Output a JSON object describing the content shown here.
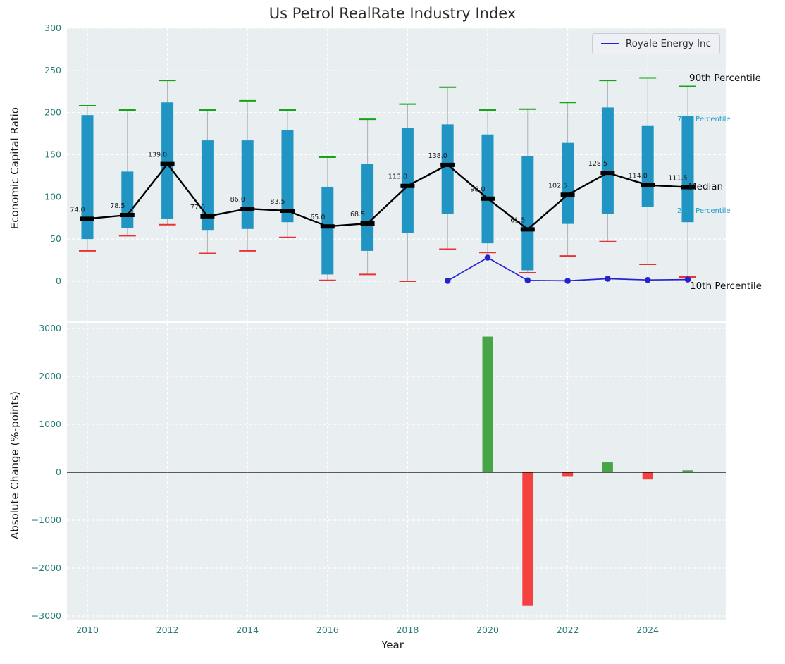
{
  "colors": {
    "figure_bg": "#ffffff",
    "panel_bg": "#e9eef1",
    "grid": "#ffffff",
    "box_fill": "#2095c3",
    "p90_cap": "#17a317",
    "p10_cap": "#e63434",
    "median": "#000000",
    "royale_line": "#2424cf",
    "bar_positive": "#46a546",
    "bar_negative": "#f54040",
    "tick_label": "#2b7d7a",
    "annotation_teal": "#1c9bc9"
  },
  "chart_data": [
    {
      "type": "boxplot",
      "title": "Us Petrol RealRate Industry Index",
      "ylabel": "Economic Capital Ratio",
      "ylim": [
        -47,
        300
      ],
      "yticks": [
        0,
        50,
        100,
        150,
        200,
        250,
        300
      ],
      "grid": true,
      "legend_position": "upper right",
      "right_labels": {
        "p90": "90th Percentile",
        "p75": "75th Percentile",
        "median": "Median",
        "p25": "25th Percentile",
        "p10": "10th Percentile"
      },
      "years": [
        2010,
        2011,
        2012,
        2013,
        2014,
        2015,
        2016,
        2017,
        2018,
        2019,
        2020,
        2021,
        2022,
        2023,
        2024,
        2025
      ],
      "p90": [
        208,
        203,
        238,
        203,
        214,
        203,
        147,
        192,
        210,
        230,
        203,
        204,
        212,
        238,
        241,
        231
      ],
      "p75": [
        197,
        130,
        212,
        167,
        167,
        179,
        112,
        139,
        182,
        186,
        174,
        148,
        164,
        206,
        184,
        196
      ],
      "median": [
        74.0,
        78.5,
        139.0,
        77.0,
        86.0,
        83.5,
        65.0,
        68.5,
        113.0,
        138.0,
        98.0,
        61.5,
        102.5,
        128.5,
        114.0,
        111.5
      ],
      "p25": [
        50,
        63,
        74,
        60,
        62,
        70,
        8,
        36,
        57,
        80,
        45,
        13,
        68,
        80,
        88,
        70
      ],
      "p10": [
        36,
        54,
        67,
        33,
        36,
        52,
        1,
        8,
        0,
        38,
        34,
        10,
        30,
        47,
        20,
        5
      ],
      "series": [
        {
          "name": "Royale Energy Inc",
          "x": [
            2019,
            2020,
            2021,
            2022,
            2023,
            2024,
            2025
          ],
          "values": [
            0.5,
            28,
            1,
            0.5,
            3,
            1.5,
            2
          ]
        }
      ]
    },
    {
      "type": "bar",
      "ylabel": "Absolute Change (%-points)",
      "xlabel": "Year",
      "ylim": [
        -3000,
        3000
      ],
      "yticks": [
        -3000,
        -2000,
        -1000,
        0,
        1000,
        2000,
        3000
      ],
      "xticks": [
        2010,
        2012,
        2014,
        2016,
        2018,
        2020,
        2022,
        2024
      ],
      "x": [
        2020,
        2021,
        2022,
        2023,
        2024,
        2025
      ],
      "values": [
        2830,
        -2790,
        -80,
        205,
        -150,
        40
      ]
    }
  ]
}
